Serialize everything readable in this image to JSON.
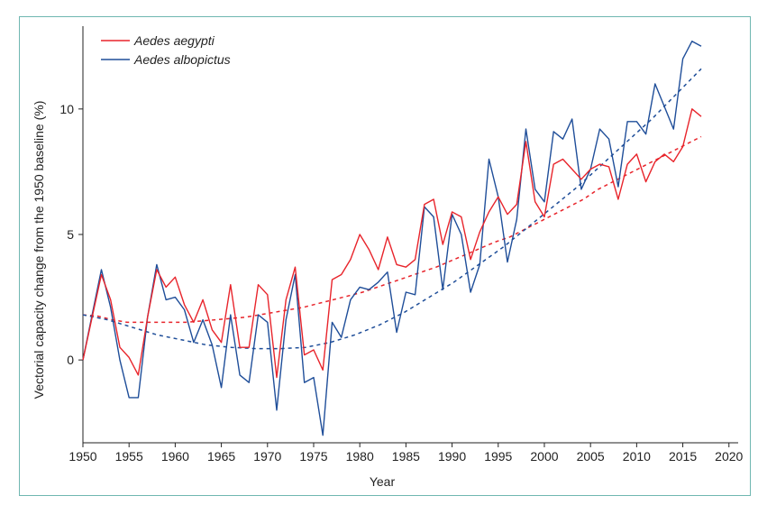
{
  "chart_data": {
    "type": "line",
    "xlabel": "Year",
    "ylabel": "Vectorial capacity change from the 1950 baseline (%)",
    "xlim": [
      1950,
      2021
    ],
    "ylim": [
      -3.3,
      13.3
    ],
    "x_ticks": [
      "1950",
      "1955",
      "1960",
      "1965",
      "1970",
      "1975",
      "1980",
      "1985",
      "1990",
      "1995",
      "2000",
      "2005",
      "2010",
      "2015",
      "2020"
    ],
    "y_ticks": [
      "0",
      "5",
      "10"
    ],
    "legend_position": "top-left",
    "grid": false,
    "x": [
      1950,
      1951,
      1952,
      1953,
      1954,
      1955,
      1956,
      1957,
      1958,
      1959,
      1960,
      1961,
      1962,
      1963,
      1964,
      1965,
      1966,
      1967,
      1968,
      1969,
      1970,
      1971,
      1972,
      1973,
      1974,
      1975,
      1976,
      1977,
      1978,
      1979,
      1980,
      1981,
      1982,
      1983,
      1984,
      1985,
      1986,
      1987,
      1988,
      1989,
      1990,
      1991,
      1992,
      1993,
      1994,
      1995,
      1996,
      1997,
      1998,
      1999,
      2000,
      2001,
      2002,
      2003,
      2004,
      2005,
      2006,
      2007,
      2008,
      2009,
      2010,
      2011,
      2012,
      2013,
      2014,
      2015,
      2016,
      2017
    ],
    "series": [
      {
        "name": "Aedes aegypti",
        "color": "#e8242b",
        "values": [
          0.0,
          1.7,
          3.4,
          2.4,
          0.5,
          0.1,
          -0.6,
          1.7,
          3.6,
          2.9,
          3.3,
          2.2,
          1.5,
          2.4,
          1.2,
          0.7,
          3.0,
          0.5,
          0.5,
          3.0,
          2.6,
          -0.7,
          2.4,
          3.7,
          0.2,
          0.4,
          -0.4,
          3.2,
          3.4,
          4.0,
          5.0,
          4.4,
          3.6,
          4.9,
          3.8,
          3.7,
          4.0,
          6.2,
          6.4,
          4.6,
          5.9,
          5.7,
          4.0,
          5.1,
          5.9,
          6.5,
          5.8,
          6.2,
          8.7,
          6.3,
          5.7,
          7.8,
          8.0,
          7.6,
          7.2,
          7.6,
          7.8,
          7.7,
          6.4,
          7.8,
          8.2,
          7.1,
          7.9,
          8.2,
          7.9,
          8.5,
          10.0,
          9.7
        ]
      },
      {
        "name": "Aedes albopictus",
        "color": "#1f4e99",
        "values": [
          0.0,
          1.8,
          3.6,
          2.1,
          0.0,
          -1.5,
          -1.5,
          1.7,
          3.8,
          2.4,
          2.5,
          2.0,
          0.7,
          1.6,
          0.6,
          -1.1,
          1.8,
          -0.6,
          -0.9,
          1.8,
          1.5,
          -2.0,
          1.6,
          3.4,
          -0.9,
          -0.7,
          -3.0,
          1.5,
          0.9,
          2.4,
          2.9,
          2.8,
          3.1,
          3.5,
          1.1,
          2.7,
          2.6,
          6.1,
          5.7,
          2.8,
          5.8,
          5.0,
          2.7,
          3.8,
          8.0,
          6.5,
          3.9,
          5.6,
          9.2,
          6.8,
          6.3,
          9.1,
          8.8,
          9.6,
          6.8,
          7.6,
          9.2,
          8.8,
          6.9,
          9.5,
          9.5,
          9.0,
          11.0,
          10.1,
          9.2,
          12.0,
          12.7,
          12.5
        ]
      }
    ],
    "trend_lines": [
      {
        "name": "Aedes aegypti",
        "style": "dashed",
        "values": [
          1.8,
          1.75,
          1.6,
          1.5,
          1.5,
          1.5,
          1.5,
          1.5,
          1.55,
          1.6,
          1.65,
          1.7,
          1.8,
          1.9,
          2.0,
          2.1,
          2.25,
          2.4,
          2.55,
          2.7,
          2.9,
          3.1,
          3.3,
          3.5,
          3.7,
          3.95,
          4.2,
          4.45,
          4.7,
          4.9,
          5.2,
          5.5,
          5.8,
          6.1,
          6.4,
          6.8,
          7.1,
          7.4,
          7.7,
          8.0,
          8.3,
          8.6,
          8.9
        ]
      },
      {
        "name": "Aedes albopictus",
        "style": "dashed",
        "values": [
          1.8,
          1.6,
          1.3,
          1.0,
          0.8,
          0.6,
          0.5,
          0.45,
          0.45,
          0.5,
          0.7,
          1.0,
          1.4,
          1.9,
          2.5,
          3.1,
          3.8,
          4.5,
          5.3,
          6.1,
          6.9,
          7.8,
          8.7,
          9.6,
          10.6,
          11.6
        ]
      }
    ]
  }
}
